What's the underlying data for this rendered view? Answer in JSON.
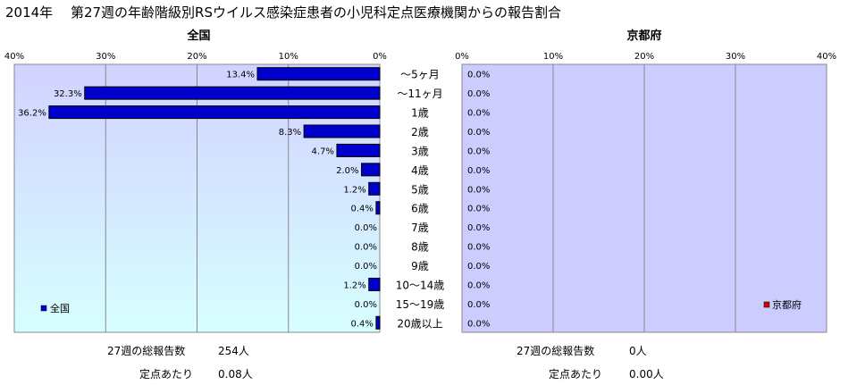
{
  "page": {
    "title": "2014年　 第27週の年齢階級別RSウイルス感染症患者の小児科定点医療機関からの報告割合"
  },
  "chart_data": [
    {
      "type": "bar",
      "orientation": "horizontal",
      "title": "全国",
      "x_direction": "reversed",
      "xlim": [
        0,
        40
      ],
      "xticks": [
        "0%",
        "10%",
        "20%",
        "30%",
        "40%"
      ],
      "categories": [
        "～5ヶ月",
        "～11ヶ月",
        "1歳",
        "2歳",
        "3歳",
        "4歳",
        "5歳",
        "6歳",
        "7歳",
        "8歳",
        "9歳",
        "10～14歳",
        "15～19歳",
        "20歳以上"
      ],
      "series": [
        {
          "name": "全国",
          "color": "#0000cc",
          "values": [
            13.4,
            32.3,
            36.2,
            8.3,
            4.7,
            2.0,
            1.2,
            0.4,
            0.0,
            0.0,
            0.0,
            1.2,
            0.0,
            0.4
          ],
          "labels": [
            "13.4%",
            "32.3%",
            "36.2%",
            "8.3%",
            "4.7%",
            "2.0%",
            "1.2%",
            "0.4%",
            "0.0%",
            "0.0%",
            "0.0%",
            "1.2%",
            "0.0%",
            "0.4%"
          ]
        }
      ],
      "grid": true,
      "legend": "bottom-left",
      "background": "gradient-lavender-to-cyan"
    },
    {
      "type": "bar",
      "orientation": "horizontal",
      "title": "京都府",
      "xlim": [
        0,
        40
      ],
      "xticks": [
        "0%",
        "10%",
        "20%",
        "30%",
        "40%"
      ],
      "categories": [
        "～5ヶ月",
        "～11ヶ月",
        "1歳",
        "2歳",
        "3歳",
        "4歳",
        "5歳",
        "6歳",
        "7歳",
        "8歳",
        "9歳",
        "10～14歳",
        "15～19歳",
        "20歳以上"
      ],
      "series": [
        {
          "name": "京都府",
          "color": "#cc0000",
          "values": [
            0,
            0,
            0,
            0,
            0,
            0,
            0,
            0,
            0,
            0,
            0,
            0,
            0,
            0
          ],
          "labels": [
            "0.0%",
            "0.0%",
            "0.0%",
            "0.0%",
            "0.0%",
            "0.0%",
            "0.0%",
            "0.0%",
            "0.0%",
            "0.0%",
            "0.0%",
            "0.0%",
            "0.0%",
            "0.0%"
          ]
        }
      ],
      "grid": true,
      "legend": "bottom-right",
      "background": "#ccccff"
    }
  ],
  "footer": {
    "national": {
      "total_label": "27週の総報告数",
      "total_value": "254人",
      "per_label": "定点あたり",
      "per_value": "0.08人"
    },
    "kyoto": {
      "total_label": "27週の総報告数",
      "total_value": "0人",
      "per_label": "定点あたり",
      "per_value": "0.00人"
    }
  }
}
